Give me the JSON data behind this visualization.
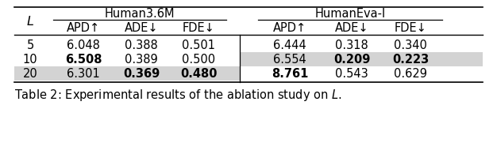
{
  "sub_headers": [
    "APD↑",
    "ADE↓",
    "FDE↓",
    "APD↑",
    "ADE↓",
    "FDE↓"
  ],
  "rows": [
    {
      "L": "5",
      "h36m": [
        "6.048",
        "0.388",
        "0.501"
      ],
      "heva": [
        "6.444",
        "0.318",
        "0.340"
      ],
      "h36m_bold": [
        false,
        false,
        false
      ],
      "heva_bold": [
        false,
        false,
        false
      ],
      "h36m_bg": false,
      "heva_bg": false
    },
    {
      "L": "10",
      "h36m": [
        "6.508",
        "0.389",
        "0.500"
      ],
      "heva": [
        "6.554",
        "0.209",
        "0.223"
      ],
      "h36m_bold": [
        true,
        false,
        false
      ],
      "heva_bold": [
        false,
        true,
        true
      ],
      "h36m_bg": false,
      "heva_bg": true
    },
    {
      "L": "20",
      "h36m": [
        "6.301",
        "0.369",
        "0.480"
      ],
      "heva": [
        "8.761",
        "0.543",
        "0.629"
      ],
      "h36m_bold": [
        false,
        true,
        true
      ],
      "heva_bold": [
        true,
        false,
        false
      ],
      "h36m_bg": true,
      "heva_bg": false
    }
  ],
  "highlight_color": "#d3d3d3",
  "bg_color": "#ffffff",
  "font_size": 10.5,
  "caption": "Table 2: Experimental results of the ablation study on $L$."
}
